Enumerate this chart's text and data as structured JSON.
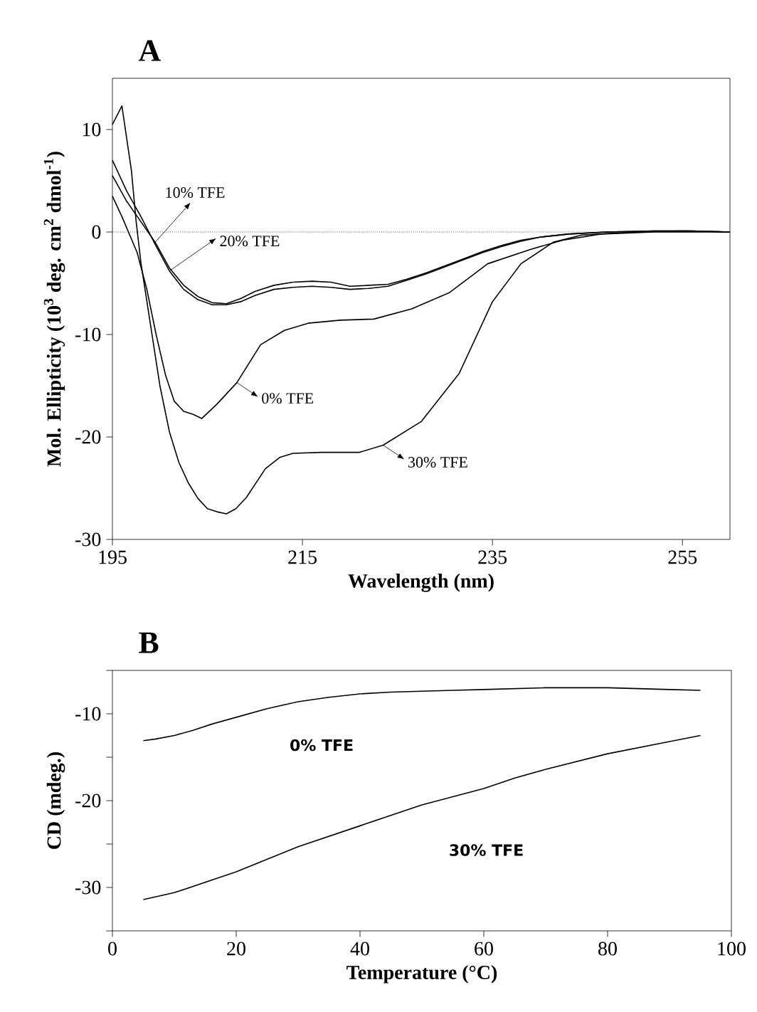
{
  "chart_data": [
    {
      "type": "line",
      "title": "A",
      "xlabel": "Wavelength (nm)",
      "ylabel": "Mol. Ellipticity (10$^{3}$ deg. cm$^{2}$ dmol$^{-1}$)",
      "xlim": [
        195,
        260
      ],
      "ylim": [
        -30,
        15
      ],
      "xticks": [
        195,
        215,
        235,
        255
      ],
      "yticks": [
        -30,
        -20,
        -10,
        0,
        10
      ],
      "line_style": "solid",
      "grid": false,
      "legend": false,
      "ref_lines": [
        {
          "axis": "y",
          "value": 0,
          "line_style": "dotted",
          "color": "#000000"
        }
      ],
      "annotations": [
        {
          "text": "10% TFE",
          "x": 199.5,
          "y": -1
        },
        {
          "text": "20% TFE",
          "x": 201,
          "y": -3.8
        },
        {
          "text": "0% TFE",
          "x": 208.1,
          "y": -14.7
        },
        {
          "text": "30% TFE",
          "x": 223.5,
          "y": -20.8
        }
      ],
      "series": [
        {
          "color": "#000000",
          "x": [
            195,
            196.5,
            198,
            199.5,
            201,
            202.5,
            204,
            205.5,
            207,
            208.5,
            210,
            212,
            214,
            216,
            218,
            220,
            222,
            224,
            226,
            228,
            230,
            232,
            234,
            236,
            238,
            240,
            243,
            247,
            252,
            256,
            260
          ],
          "values": [
            5.5,
            3,
            1,
            -1,
            -3.5,
            -5.2,
            -6.3,
            -6.9,
            -7,
            -6.5,
            -5.8,
            -5.2,
            -4.9,
            -4.8,
            -4.9,
            -5.3,
            -5.2,
            -5.1,
            -4.6,
            -4,
            -3.3,
            -2.6,
            -1.9,
            -1.3,
            -0.8,
            -0.5,
            -0.2,
            0,
            0.1,
            0.1,
            0
          ]
        },
        {
          "color": "#000000",
          "x": [
            195,
            196.5,
            198,
            199.5,
            201,
            202.5,
            204,
            205.5,
            207,
            208.5,
            210,
            212,
            214,
            216,
            218,
            220,
            222,
            224,
            226,
            228,
            230,
            232,
            234,
            236,
            238,
            240,
            243,
            247,
            252,
            256,
            260
          ],
          "values": [
            7,
            4,
            1.5,
            -1.2,
            -3.8,
            -5.6,
            -6.6,
            -7.1,
            -7.1,
            -6.8,
            -6.2,
            -5.6,
            -5.4,
            -5.3,
            -5.4,
            -5.6,
            -5.5,
            -5.3,
            -4.7,
            -4.1,
            -3.4,
            -2.7,
            -2,
            -1.4,
            -0.9,
            -0.5,
            -0.2,
            0,
            0.1,
            0.1,
            0
          ]
        },
        {
          "color": "#000000",
          "x": [
            195,
            196,
            197.6,
            198.6,
            199.6,
            200.6,
            201.5,
            202.5,
            203.5,
            204.4,
            206,
            208.1,
            210.6,
            213.1,
            215.6,
            219,
            222.5,
            226.5,
            230.5,
            234.5,
            239,
            242.4,
            246.4,
            252,
            260
          ],
          "values": [
            3.5,
            1.5,
            -2,
            -5.5,
            -10,
            -14,
            -16.5,
            -17.5,
            -17.8,
            -18.2,
            -16.8,
            -14.7,
            -11,
            -9.6,
            -8.9,
            -8.6,
            -8.5,
            -7.5,
            -5.9,
            -3.1,
            -1.7,
            -0.8,
            -0.2,
            0,
            0
          ]
        },
        {
          "color": "#000000",
          "x": [
            195,
            196,
            197,
            197.5,
            198,
            199,
            200,
            201,
            202,
            203,
            204,
            205,
            206,
            207,
            208,
            209.1,
            211.1,
            212.6,
            214,
            217,
            221,
            223.5,
            227.5,
            231.5,
            235,
            238,
            241.4,
            244.4,
            250,
            255,
            260
          ],
          "values": [
            10.5,
            12.3,
            6,
            1,
            -3,
            -9,
            -15,
            -19.5,
            -22.5,
            -24.5,
            -26,
            -27,
            -27.3,
            -27.5,
            -27,
            -25.9,
            -23.1,
            -22,
            -21.6,
            -21.5,
            -21.5,
            -20.8,
            -18.5,
            -13.8,
            -6.8,
            -3.1,
            -1,
            -0.3,
            0,
            0.1,
            0
          ]
        }
      ]
    },
    {
      "type": "line",
      "title": "B",
      "xlabel": "Temperature (°C)",
      "ylabel": "CD (mdeg.)",
      "xlim": [
        0,
        100
      ],
      "ylim": [
        -35,
        -5
      ],
      "xticks": [
        0,
        20,
        40,
        60,
        80,
        100
      ],
      "yticks": [
        {
          "value": -35,
          "label": null
        },
        -30,
        {
          "value": -25,
          "label": null
        },
        -20,
        {
          "value": -15,
          "label": null
        },
        -10,
        {
          "value": -5,
          "label": null
        }
      ],
      "line_style": "solid",
      "grid": false,
      "legend": false,
      "annotations": [
        "0% TFE",
        "30% TFE"
      ],
      "series": [
        {
          "color": "#000000",
          "x": [
            5,
            7,
            10,
            13,
            16,
            20,
            25,
            30,
            35,
            40,
            45,
            50,
            55,
            60,
            65,
            70,
            75,
            80,
            85,
            90,
            95
          ],
          "values": [
            -13.1,
            -12.9,
            -12.5,
            -11.9,
            -11.2,
            -10.4,
            -9.4,
            -8.6,
            -8.1,
            -7.7,
            -7.5,
            -7.4,
            -7.3,
            -7.2,
            -7.1,
            -7.0,
            -7.0,
            -7.0,
            -7.1,
            -7.2,
            -7.3
          ]
        },
        {
          "color": "#000000",
          "x": [
            5,
            10,
            20,
            30,
            40,
            50,
            60,
            65,
            70,
            80,
            90,
            95
          ],
          "values": [
            -31.4,
            -30.6,
            -28.2,
            -25.3,
            -22.9,
            -20.5,
            -18.6,
            -17.4,
            -16.4,
            -14.6,
            -13.2,
            -12.5
          ]
        }
      ]
    }
  ]
}
